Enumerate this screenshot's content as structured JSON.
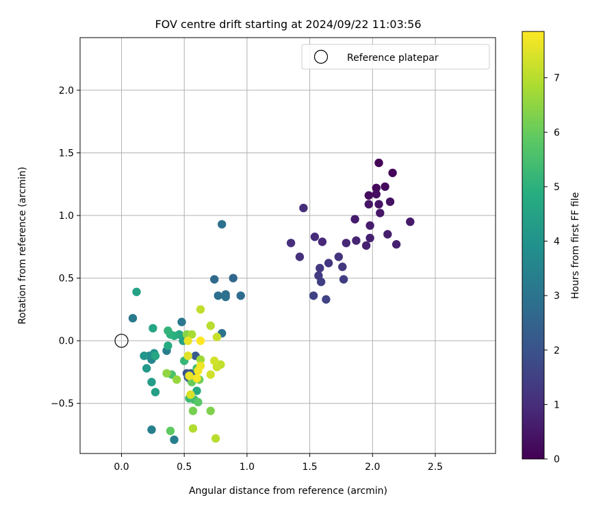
{
  "chart_data": {
    "type": "scatter",
    "title": "FOV centre drift starting at 2024/09/22 11:03:56",
    "xlabel": "Angular distance from reference (arcmin)",
    "ylabel": "Rotation from reference (arcmin)",
    "xlim": [
      -0.33,
      2.98
    ],
    "ylim": [
      -0.9,
      2.42
    ],
    "xticks": [
      0.0,
      0.5,
      1.0,
      1.5,
      2.0,
      2.5
    ],
    "xtick_labels": [
      "0.0",
      "0.5",
      "1.0",
      "1.5",
      "2.0",
      "2.5"
    ],
    "yticks": [
      -0.5,
      0.0,
      0.5,
      1.0,
      1.5,
      2.0
    ],
    "ytick_labels": [
      "−0.5",
      "0.0",
      "0.5",
      "1.0",
      "1.5",
      "2.0"
    ],
    "grid": true,
    "legend": {
      "placement": "top-right",
      "label": "Reference platepar"
    },
    "reference_point": {
      "x": 0.0,
      "y": 0.0
    },
    "colorbar": {
      "label": "Hours from first FF file",
      "min": 0,
      "max": 7.85,
      "ticks": [
        0,
        1,
        2,
        3,
        4,
        5,
        6,
        7
      ],
      "tick_labels": [
        "0",
        "1",
        "2",
        "3",
        "4",
        "5",
        "6",
        "7"
      ],
      "colormap": "viridis"
    },
    "points": [
      {
        "x": 2.05,
        "y": 1.42,
        "c": 0.05
      },
      {
        "x": 2.16,
        "y": 1.34,
        "c": 0.1
      },
      {
        "x": 2.03,
        "y": 1.22,
        "c": 0.15
      },
      {
        "x": 2.1,
        "y": 1.23,
        "c": 0.2
      },
      {
        "x": 1.97,
        "y": 1.16,
        "c": 0.25
      },
      {
        "x": 2.03,
        "y": 1.17,
        "c": 0.3
      },
      {
        "x": 2.14,
        "y": 1.11,
        "c": 0.35
      },
      {
        "x": 2.05,
        "y": 1.09,
        "c": 0.4
      },
      {
        "x": 1.97,
        "y": 1.09,
        "c": 0.45
      },
      {
        "x": 2.06,
        "y": 1.02,
        "c": 0.5
      },
      {
        "x": 2.3,
        "y": 0.95,
        "c": 0.55
      },
      {
        "x": 1.86,
        "y": 0.97,
        "c": 0.6
      },
      {
        "x": 1.98,
        "y": 0.92,
        "c": 0.62
      },
      {
        "x": 2.12,
        "y": 0.85,
        "c": 0.65
      },
      {
        "x": 1.98,
        "y": 0.82,
        "c": 0.7
      },
      {
        "x": 2.19,
        "y": 0.77,
        "c": 0.72
      },
      {
        "x": 1.95,
        "y": 0.76,
        "c": 0.75
      },
      {
        "x": 1.87,
        "y": 0.8,
        "c": 0.8
      },
      {
        "x": 1.79,
        "y": 0.78,
        "c": 0.85
      },
      {
        "x": 1.6,
        "y": 0.79,
        "c": 0.9
      },
      {
        "x": 1.54,
        "y": 0.83,
        "c": 0.95
      },
      {
        "x": 1.45,
        "y": 1.06,
        "c": 1.0
      },
      {
        "x": 1.35,
        "y": 0.78,
        "c": 1.05
      },
      {
        "x": 1.42,
        "y": 0.67,
        "c": 1.1
      },
      {
        "x": 1.73,
        "y": 0.67,
        "c": 1.15
      },
      {
        "x": 1.65,
        "y": 0.62,
        "c": 1.2
      },
      {
        "x": 1.76,
        "y": 0.59,
        "c": 1.25
      },
      {
        "x": 1.58,
        "y": 0.58,
        "c": 1.3
      },
      {
        "x": 1.57,
        "y": 0.52,
        "c": 1.35
      },
      {
        "x": 1.77,
        "y": 0.49,
        "c": 1.4
      },
      {
        "x": 1.59,
        "y": 0.47,
        "c": 1.45
      },
      {
        "x": 1.53,
        "y": 0.36,
        "c": 1.5
      },
      {
        "x": 1.63,
        "y": 0.33,
        "c": 1.55
      },
      {
        "x": 0.52,
        "y": -0.26,
        "c": 2.0
      },
      {
        "x": 0.54,
        "y": -0.3,
        "c": 2.1
      },
      {
        "x": 0.56,
        "y": -0.27,
        "c": 2.15
      },
      {
        "x": 0.59,
        "y": -0.12,
        "c": 2.2
      },
      {
        "x": 0.53,
        "y": -0.29,
        "c": 2.25
      },
      {
        "x": 0.55,
        "y": -0.26,
        "c": 2.3
      },
      {
        "x": 0.89,
        "y": 0.5,
        "c": 2.6
      },
      {
        "x": 0.74,
        "y": 0.49,
        "c": 2.7
      },
      {
        "x": 0.95,
        "y": 0.36,
        "c": 2.8
      },
      {
        "x": 0.77,
        "y": 0.36,
        "c": 2.85
      },
      {
        "x": 0.83,
        "y": 0.37,
        "c": 2.9
      },
      {
        "x": 0.83,
        "y": 0.35,
        "c": 2.95
      },
      {
        "x": 0.8,
        "y": 0.93,
        "c": 2.9
      },
      {
        "x": 0.8,
        "y": 0.06,
        "c": 3.0
      },
      {
        "x": 0.48,
        "y": 0.15,
        "c": 3.1
      },
      {
        "x": 0.09,
        "y": 0.18,
        "c": 3.2
      },
      {
        "x": 0.36,
        "y": -0.08,
        "c": 3.3
      },
      {
        "x": 0.42,
        "y": -0.79,
        "c": 3.35
      },
      {
        "x": 0.24,
        "y": -0.71,
        "c": 3.4
      },
      {
        "x": 0.24,
        "y": -0.15,
        "c": 3.6
      },
      {
        "x": 0.22,
        "y": -0.12,
        "c": 3.8
      },
      {
        "x": 0.26,
        "y": -0.1,
        "c": 4.0
      },
      {
        "x": 0.18,
        "y": -0.12,
        "c": 4.1
      },
      {
        "x": 0.2,
        "y": -0.22,
        "c": 4.2
      },
      {
        "x": 0.24,
        "y": -0.33,
        "c": 4.3
      },
      {
        "x": 0.27,
        "y": -0.41,
        "c": 4.4
      },
      {
        "x": 0.49,
        "y": 0.0,
        "c": 4.45
      },
      {
        "x": 0.12,
        "y": 0.39,
        "c": 4.5
      },
      {
        "x": 0.25,
        "y": 0.1,
        "c": 4.6
      },
      {
        "x": 0.27,
        "y": -0.12,
        "c": 4.65
      },
      {
        "x": 0.46,
        "y": 0.05,
        "c": 4.7
      },
      {
        "x": 0.6,
        "y": -0.4,
        "c": 4.75
      },
      {
        "x": 0.37,
        "y": -0.04,
        "c": 4.8
      },
      {
        "x": 0.42,
        "y": 0.04,
        "c": 4.9
      },
      {
        "x": 0.39,
        "y": 0.05,
        "c": 5.0
      },
      {
        "x": 0.37,
        "y": 0.08,
        "c": 5.1
      },
      {
        "x": 0.5,
        "y": -0.16,
        "c": 5.2
      },
      {
        "x": 0.54,
        "y": -0.46,
        "c": 5.3
      },
      {
        "x": 0.58,
        "y": -0.47,
        "c": 5.4
      },
      {
        "x": 0.6,
        "y": -0.22,
        "c": 5.5
      },
      {
        "x": 0.4,
        "y": -0.27,
        "c": 5.6
      },
      {
        "x": 0.61,
        "y": -0.49,
        "c": 5.8
      },
      {
        "x": 0.39,
        "y": -0.72,
        "c": 5.9
      },
      {
        "x": 0.56,
        "y": -0.33,
        "c": 6.0
      },
      {
        "x": 0.62,
        "y": -0.31,
        "c": 6.1
      },
      {
        "x": 0.57,
        "y": -0.56,
        "c": 6.2
      },
      {
        "x": 0.71,
        "y": -0.56,
        "c": 6.3
      },
      {
        "x": 0.52,
        "y": 0.05,
        "c": 6.4
      },
      {
        "x": 0.36,
        "y": -0.26,
        "c": 6.5
      },
      {
        "x": 0.44,
        "y": -0.31,
        "c": 6.6
      },
      {
        "x": 0.63,
        "y": -0.15,
        "c": 6.7
      },
      {
        "x": 0.56,
        "y": 0.05,
        "c": 6.8
      },
      {
        "x": 0.57,
        "y": -0.7,
        "c": 6.9
      },
      {
        "x": 0.75,
        "y": -0.78,
        "c": 7.0
      },
      {
        "x": 0.71,
        "y": 0.12,
        "c": 7.0
      },
      {
        "x": 0.63,
        "y": 0.25,
        "c": 7.1
      },
      {
        "x": 0.79,
        "y": -0.19,
        "c": 7.1
      },
      {
        "x": 0.76,
        "y": 0.03,
        "c": 7.2
      },
      {
        "x": 0.76,
        "y": -0.21,
        "c": 7.2
      },
      {
        "x": 0.74,
        "y": -0.16,
        "c": 7.3
      },
      {
        "x": 0.71,
        "y": -0.27,
        "c": 7.3
      },
      {
        "x": 0.55,
        "y": -0.43,
        "c": 7.4
      },
      {
        "x": 0.53,
        "y": -0.12,
        "c": 7.5
      },
      {
        "x": 0.54,
        "y": -0.28,
        "c": 7.6
      },
      {
        "x": 0.53,
        "y": 0.0,
        "c": 7.6
      },
      {
        "x": 0.63,
        "y": -0.2,
        "c": 7.65
      },
      {
        "x": 0.61,
        "y": -0.24,
        "c": 7.7
      },
      {
        "x": 0.6,
        "y": -0.3,
        "c": 7.75
      },
      {
        "x": 0.63,
        "y": 0.0,
        "c": 7.85
      }
    ]
  }
}
